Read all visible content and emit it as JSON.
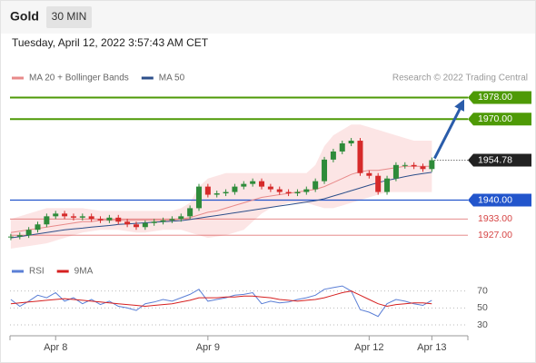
{
  "chart_data": [
    {
      "type": "candlestick",
      "title": "Gold",
      "timeframe": "30 MIN",
      "subtitle": "Tuesday, April 12, 2022 3:57:43 AM CET",
      "source": "Research © 2022 Trading Central",
      "categories": [
        null,
        null,
        null,
        null,
        null,
        "Apr 8",
        null,
        null,
        null,
        null,
        null,
        null,
        null,
        null,
        null,
        null,
        null,
        null,
        null,
        null,
        null,
        null,
        "Apr 9",
        null,
        null,
        null,
        null,
        null,
        null,
        null,
        null,
        null,
        null,
        null,
        null,
        null,
        null,
        null,
        null,
        null,
        "Apr 12",
        null,
        null,
        null,
        null,
        null,
        null,
        "Apr 13"
      ],
      "closes": [
        1926.5,
        1927,
        1929,
        1931,
        1934,
        1935,
        1934,
        1933.5,
        1934,
        1933,
        1932.5,
        1933.5,
        1932,
        1931,
        1930,
        1931.5,
        1932,
        1932.5,
        1933,
        1934,
        1937,
        1945,
        1942,
        1942.5,
        1943,
        1945,
        1946,
        1947,
        1945,
        1944,
        1943,
        1942.5,
        1943,
        1944,
        1947,
        1955,
        1958,
        1961,
        1962,
        1950,
        1949,
        1943,
        1948,
        1953,
        1953,
        1952.5,
        1951.5,
        1954.78
      ],
      "up_color": "#2e8b3a",
      "down_color": "#d62a2a",
      "series": [
        {
          "name": "MA 20 + Bollinger Bands",
          "color": "#e88a8a",
          "band_color": "#fbdcdc",
          "values": [
            1928,
            1928.5,
            1929,
            1929.5,
            1930,
            1930.5,
            1931,
            1931.5,
            1932,
            1932,
            1932.5,
            1932.5,
            1932.5,
            1932.5,
            1932.5,
            1932.5,
            1932.5,
            1932.5,
            1932.5,
            1933,
            1933.5,
            1934.5,
            1935.5,
            1936,
            1937,
            1938,
            1939,
            1940,
            1941,
            1941.5,
            1942,
            1942.5,
            1943,
            1943.5,
            1944,
            1945,
            1946.5,
            1948,
            1949.5,
            1950.5,
            1951,
            1951,
            1951.5,
            1952,
            1952.5,
            1952.5,
            1952.5,
            1952.5
          ],
          "upper": [
            1933,
            1934,
            1935,
            1936,
            1937,
            1937,
            1937,
            1937,
            1937,
            1936.5,
            1936,
            1936,
            1936,
            1936,
            1936,
            1936,
            1936,
            1936,
            1936,
            1937,
            1939,
            1945,
            1948,
            1949,
            1950,
            1950,
            1950,
            1950,
            1950,
            1950,
            1950,
            1950,
            1950,
            1950,
            1953,
            1960,
            1964,
            1966,
            1968,
            1968,
            1967,
            1966,
            1965,
            1964,
            1963,
            1962,
            1962,
            1962
          ],
          "lower": [
            1922,
            1922.5,
            1923,
            1923.5,
            1924,
            1925,
            1926,
            1927,
            1928,
            1928.5,
            1929,
            1929,
            1929,
            1928.5,
            1928,
            1928,
            1928.5,
            1929,
            1929,
            1929,
            1928,
            1927,
            1926,
            1926.5,
            1927,
            1928,
            1929,
            1932,
            1935,
            1937,
            1938,
            1939,
            1939,
            1939,
            1938,
            1937,
            1937,
            1938,
            1939,
            1940,
            1941,
            1942,
            1943,
            1943,
            1943,
            1943,
            1943,
            1943
          ]
        },
        {
          "name": "MA 50",
          "color": "#2d4f8a",
          "values": [
            1926,
            1926.5,
            1927,
            1927.5,
            1928,
            1928.5,
            1929,
            1929.3,
            1929.6,
            1930,
            1930.3,
            1930.6,
            1931,
            1931.2,
            1931.4,
            1931.6,
            1931.8,
            1932,
            1932.2,
            1932.4,
            1932.8,
            1933.3,
            1933.8,
            1934.3,
            1934.8,
            1935.3,
            1935.8,
            1936.3,
            1936.8,
            1937.3,
            1937.8,
            1938.3,
            1938.8,
            1939.3,
            1939.8,
            1940.5,
            1941.5,
            1942.5,
            1943.5,
            1944.5,
            1945.5,
            1946.5,
            1947.3,
            1948,
            1948.7,
            1949.3,
            1949.8,
            1950.3
          ]
        }
      ],
      "levels": [
        {
          "value": 1978,
          "label": "1978.00",
          "color": "#4e9a06",
          "style": "box"
        },
        {
          "value": 1970,
          "label": "1970.00",
          "color": "#4e9a06",
          "style": "box"
        },
        {
          "value": 1954.78,
          "label": "1954.78",
          "color": "#222222",
          "style": "current"
        },
        {
          "value": 1940,
          "label": "1940.00",
          "color": "#2255cc",
          "style": "box"
        },
        {
          "value": 1933,
          "label": "1933.00",
          "color": "#d64545",
          "style": "text"
        },
        {
          "value": 1927,
          "label": "1927.00",
          "color": "#d64545",
          "style": "text"
        }
      ],
      "arrow_color": "#2a5caa",
      "ylim": [
        1920,
        1980.5
      ]
    },
    {
      "type": "line",
      "series": [
        {
          "name": "RSI",
          "color": "#5b7fd6",
          "values": [
            60,
            52,
            58,
            65,
            62,
            68,
            58,
            62,
            55,
            60,
            54,
            58,
            52,
            50,
            47,
            55,
            57,
            60,
            58,
            62,
            66,
            72,
            58,
            60,
            62,
            65,
            66,
            68,
            55,
            58,
            56,
            57,
            60,
            62,
            65,
            72,
            74,
            76,
            70,
            48,
            45,
            40,
            55,
            60,
            58,
            55,
            53,
            59
          ]
        },
        {
          "name": "9MA",
          "color": "#d62020",
          "values": [
            55,
            56,
            57,
            58,
            59,
            60,
            61,
            60,
            59,
            58,
            57,
            56,
            55,
            54,
            53,
            52,
            53,
            54,
            55,
            57,
            59,
            62,
            62,
            62,
            63,
            63,
            64,
            64,
            63,
            62,
            60,
            59,
            58,
            59,
            60,
            62,
            65,
            68,
            70,
            65,
            60,
            55,
            52,
            54,
            55,
            56,
            56,
            55
          ]
        }
      ],
      "ylim": [
        15,
        90
      ],
      "yticks": [
        30,
        50,
        70
      ],
      "grid": true
    }
  ]
}
